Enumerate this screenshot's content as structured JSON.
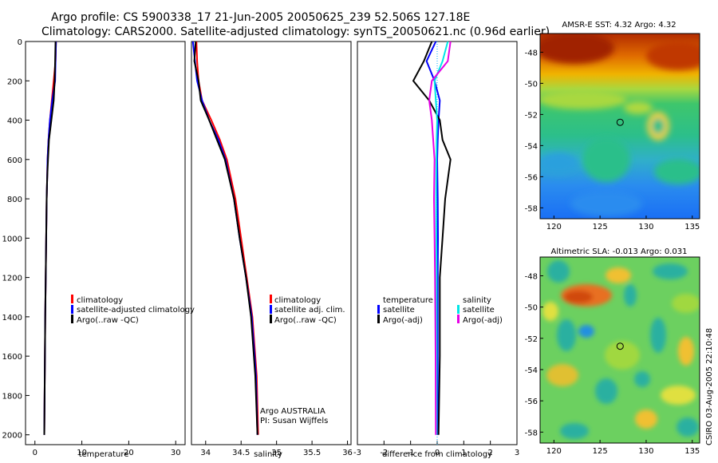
{
  "header": {
    "line1": "Argo profile: CS 5900338_17 21-Jun-2005 20050625_239 52.506S 127.18E",
    "line2": "Climatology: CARS2000. Satellite-adjusted climatology: synTS_20050621.nc (0.96d earlier)"
  },
  "side_label": "CSIRO 03-Aug-2005 22:10:48",
  "colors": {
    "climatology": "#ff0000",
    "satellite": "#0000ff",
    "argo": "#000000",
    "salinity_sat": "#00e6e6",
    "salinity_argo": "#e600e6",
    "zero_line": "#00aaff"
  },
  "chart_data": [
    {
      "id": "temperature",
      "type": "line",
      "xlabel": "temperature",
      "ylabel": "",
      "xlim": [
        -2,
        32
      ],
      "ylim": [
        2050,
        0
      ],
      "xticks": [
        0,
        10,
        20,
        30
      ],
      "yticks": [
        0,
        200,
        400,
        600,
        800,
        1000,
        1200,
        1400,
        1600,
        1800,
        2000
      ],
      "legend": [
        "climatology",
        "satellite-adjusted climatology",
        "Argo(..raw -QC)"
      ],
      "series": [
        {
          "name": "climatology",
          "color": "red",
          "x": [
            4.5,
            4.4,
            4.0,
            3.6,
            3.2,
            2.9,
            2.7,
            2.6,
            2.5,
            2.4,
            2.3,
            2.2,
            2.1,
            2.0
          ],
          "y": [
            0,
            100,
            200,
            300,
            400,
            500,
            600,
            700,
            800,
            1000,
            1200,
            1400,
            1700,
            2000
          ]
        },
        {
          "name": "satellite",
          "color": "blue",
          "x": [
            4.5,
            4.4,
            4.3,
            3.7,
            3.2,
            2.9,
            2.7,
            2.6,
            2.5,
            2.4,
            2.3,
            2.2,
            2.1,
            2.0
          ],
          "y": [
            0,
            100,
            200,
            300,
            400,
            500,
            600,
            700,
            800,
            1000,
            1200,
            1400,
            1700,
            2000
          ]
        },
        {
          "name": "argo",
          "color": "black",
          "x": [
            4.4,
            4.3,
            4.2,
            4.0,
            3.5,
            3.0,
            2.8,
            2.6,
            2.5,
            2.4,
            2.3,
            2.2,
            2.1,
            2.0
          ],
          "y": [
            0,
            100,
            200,
            300,
            400,
            500,
            600,
            700,
            800,
            1000,
            1200,
            1400,
            1700,
            2000
          ]
        }
      ]
    },
    {
      "id": "salinity",
      "type": "line",
      "xlabel": "salinity",
      "xlim": [
        33.8,
        36.05
      ],
      "ylim": [
        2050,
        0
      ],
      "xticks": [
        34,
        34.5,
        35,
        35.5,
        36
      ],
      "yticks": [
        0,
        200,
        400,
        600,
        800,
        1000,
        1200,
        1400,
        1600,
        1800,
        2000
      ],
      "legend": [
        "climatology",
        "satellite adj. clim.",
        "Argo(..raw -QC)"
      ],
      "annotations": [
        "Argo AUSTRALIA",
        "PI: Susan Wijffels"
      ],
      "series": [
        {
          "name": "climatology",
          "color": "red",
          "x": [
            33.87,
            33.88,
            33.9,
            33.95,
            34.08,
            34.2,
            34.3,
            34.42,
            34.5,
            34.58,
            34.66,
            34.72,
            34.74
          ],
          "y": [
            0,
            100,
            200,
            300,
            400,
            500,
            600,
            800,
            1000,
            1200,
            1400,
            1700,
            2000
          ]
        },
        {
          "name": "satellite",
          "color": "blue",
          "x": [
            33.82,
            33.85,
            33.88,
            33.95,
            34.05,
            34.18,
            34.28,
            34.4,
            34.48,
            34.57,
            34.65,
            34.71,
            34.73
          ],
          "y": [
            0,
            100,
            200,
            300,
            400,
            500,
            600,
            800,
            1000,
            1200,
            1400,
            1700,
            2000
          ]
        },
        {
          "name": "argo",
          "color": "black",
          "x": [
            33.86,
            33.84,
            33.9,
            33.93,
            34.05,
            34.16,
            34.27,
            34.4,
            34.48,
            34.57,
            34.64,
            34.7,
            34.73
          ],
          "y": [
            0,
            100,
            200,
            300,
            400,
            500,
            600,
            800,
            1000,
            1200,
            1400,
            1700,
            2000
          ]
        }
      ]
    },
    {
      "id": "difference",
      "type": "line",
      "xlabel": "difference from climatology",
      "xlim": [
        -3,
        3
      ],
      "ylim": [
        2050,
        0
      ],
      "xticks": [
        -3,
        -2,
        -1,
        0,
        1,
        2,
        3
      ],
      "yticks": [
        0,
        200,
        400,
        600,
        800,
        1000,
        1200,
        1400,
        1600,
        1800,
        2000
      ],
      "legend_left": [
        "temperature",
        "satellite",
        "Argo(-adj)"
      ],
      "legend_right": [
        "salinity",
        "satellite",
        "Argo(-adj)"
      ],
      "series": [
        {
          "name": "temperature satellite",
          "color": "blue",
          "x": [
            -0.05,
            -0.4,
            -0.1,
            0.1,
            0.05,
            0.02,
            0.0,
            0.02,
            0.03,
            0.02,
            0.02,
            0.02
          ],
          "y": [
            0,
            100,
            200,
            300,
            400,
            500,
            600,
            800,
            1000,
            1200,
            1600,
            2000
          ]
        },
        {
          "name": "temperature argo",
          "color": "black",
          "x": [
            -0.2,
            -0.5,
            -0.9,
            -0.3,
            0.1,
            0.2,
            0.5,
            0.3,
            0.2,
            0.1,
            0.1,
            0.05
          ],
          "y": [
            0,
            100,
            200,
            300,
            400,
            500,
            600,
            800,
            1000,
            1200,
            1600,
            2000
          ]
        },
        {
          "name": "salinity satellite",
          "color": "cyan",
          "x": [
            0.4,
            0.2,
            -0.1,
            -0.05,
            0.0,
            -0.02,
            -0.03,
            -0.04,
            -0.03,
            -0.02,
            -0.02,
            -0.02
          ],
          "y": [
            0,
            100,
            200,
            300,
            400,
            500,
            600,
            800,
            1000,
            1200,
            1600,
            2000
          ]
        },
        {
          "name": "salinity argo",
          "color": "magenta",
          "x": [
            0.5,
            0.4,
            -0.2,
            -0.3,
            -0.2,
            -0.15,
            -0.1,
            -0.12,
            -0.1,
            -0.08,
            -0.06,
            -0.05
          ],
          "y": [
            0,
            100,
            200,
            300,
            400,
            500,
            600,
            800,
            1000,
            1200,
            1600,
            2000
          ]
        }
      ]
    },
    {
      "id": "sst_map",
      "type": "heatmap",
      "title": "AMSR-E SST: 4.32 Argo: 4.32",
      "xlim": [
        118.5,
        135.8
      ],
      "ylim": [
        -58.7,
        -46.8
      ],
      "xticks": [
        120,
        125,
        130,
        135
      ],
      "yticks": [
        -48,
        -50,
        -52,
        -54,
        -56,
        -58
      ],
      "marker": {
        "lon": 127.18,
        "lat": -52.506
      }
    },
    {
      "id": "sla_map",
      "type": "heatmap",
      "title": "Altimetric SLA: -0.013 Argo: 0.031",
      "xlim": [
        118.5,
        135.8
      ],
      "ylim": [
        -58.7,
        -46.8
      ],
      "xticks": [
        120,
        125,
        130,
        135
      ],
      "yticks": [
        -48,
        -50,
        -52,
        -54,
        -56,
        -58
      ],
      "marker": {
        "lon": 127.18,
        "lat": -52.506
      }
    }
  ]
}
